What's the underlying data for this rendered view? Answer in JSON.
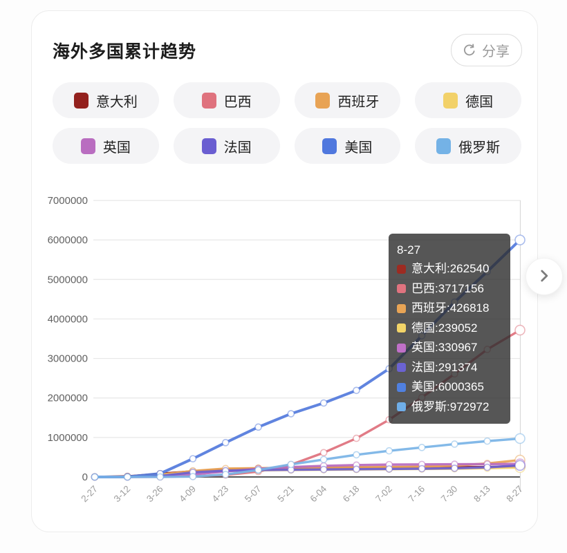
{
  "page": {
    "title": "海外多国累计趋势"
  },
  "share": {
    "label": "分享"
  },
  "legend": {
    "items": [
      {
        "id": "italy",
        "label": "意大利",
        "color": "#93211e"
      },
      {
        "id": "brazil",
        "label": "巴西",
        "color": "#df727e"
      },
      {
        "id": "spain",
        "label": "西班牙",
        "color": "#e8a355"
      },
      {
        "id": "germany",
        "label": "德国",
        "color": "#f2d169"
      },
      {
        "id": "uk",
        "label": "英国",
        "color": "#b96dc0"
      },
      {
        "id": "france",
        "label": "法国",
        "color": "#6a5ed1"
      },
      {
        "id": "usa",
        "label": "美国",
        "color": "#5078de"
      },
      {
        "id": "russia",
        "label": "俄罗斯",
        "color": "#74b2e6"
      }
    ]
  },
  "tooltip": {
    "date": "8-27",
    "items": [
      {
        "id": "italy",
        "label": "意大利",
        "value": "262540",
        "color": "#9d2b22"
      },
      {
        "id": "brazil",
        "label": "巴西",
        "value": "3717156",
        "color": "#e0737f"
      },
      {
        "id": "spain",
        "label": "西班牙",
        "value": "426818",
        "color": "#e8a455"
      },
      {
        "id": "germany",
        "label": "德国",
        "value": "239052",
        "color": "#f2d468"
      },
      {
        "id": "uk",
        "label": "英国",
        "value": "330967",
        "color": "#c070c8"
      },
      {
        "id": "france",
        "label": "法国",
        "value": "291374",
        "color": "#6b63d2"
      },
      {
        "id": "usa",
        "label": "美国",
        "value": "6000365",
        "color": "#5080e0"
      },
      {
        "id": "russia",
        "label": "俄罗斯",
        "value": "972972",
        "color": "#6faee8"
      }
    ]
  },
  "chart_data": {
    "type": "line",
    "title": "海外多国累计趋势",
    "x": [
      "2-27",
      "3-12",
      "3-26",
      "4-09",
      "4-23",
      "5-07",
      "5-21",
      "6-04",
      "6-18",
      "7-02",
      "7-16",
      "7-30",
      "8-13",
      "8-27"
    ],
    "ylim": [
      0,
      7000000
    ],
    "y_ticks": [
      0,
      1000000,
      2000000,
      3000000,
      4000000,
      5000000,
      6000000,
      7000000
    ],
    "grid": true,
    "legend_position": "top",
    "hovered_x": "8-27",
    "series": [
      {
        "id": "italy",
        "name": "意大利",
        "color": "#8e2423",
        "values": [
          650,
          15113,
          80589,
          143626,
          189973,
          215858,
          228006,
          234013,
          238275,
          240961,
          243967,
          247158,
          252809,
          262540
        ]
      },
      {
        "id": "brazil",
        "name": "巴西",
        "color": "#de707c",
        "values": [
          1,
          98,
          2985,
          18092,
          50036,
          135693,
          310087,
          614941,
          978142,
          1448753,
          2012151,
          2610102,
          3229621,
          3717156
        ]
      },
      {
        "id": "spain",
        "name": "西班牙",
        "color": "#e9a456",
        "values": [
          45,
          3146,
          56188,
          152446,
          213024,
          221447,
          233037,
          240978,
          245938,
          250545,
          260255,
          288522,
          342813,
          426818
        ]
      },
      {
        "id": "germany",
        "name": "德国",
        "color": "#f2d169",
        "values": [
          57,
          2369,
          43938,
          113296,
          150648,
          167300,
          177212,
          183271,
          188604,
          195832,
          201574,
          208698,
          221413,
          239052
        ]
      },
      {
        "id": "uk",
        "name": "英国",
        "color": "#b769be",
        "values": [
          15,
          590,
          11658,
          65077,
          138078,
          206715,
          250908,
          281661,
          300469,
          312654,
          317368,
          322280,
          324601,
          330967
        ]
      },
      {
        "id": "france",
        "name": "法国",
        "color": "#6a5dd0",
        "values": [
          38,
          2876,
          25233,
          117749,
          158183,
          174791,
          181826,
          189670,
          195904,
          202775,
          209365,
          220352,
          244854,
          291374
        ]
      },
      {
        "id": "usa",
        "name": "美国",
        "color": "#5379dc",
        "values": [
          60,
          1663,
          85356,
          461437,
          869170,
          1263092,
          1600937,
          1872660,
          2191052,
          2739879,
          3576221,
          4426982,
          5199444,
          6000365
        ]
      },
      {
        "id": "russia",
        "name": "俄罗斯",
        "color": "#78b3e6",
        "values": [
          2,
          28,
          840,
          10131,
          62773,
          177160,
          317554,
          441108,
          561091,
          661165,
          746369,
          831732,
          907758,
          972972
        ]
      }
    ]
  }
}
